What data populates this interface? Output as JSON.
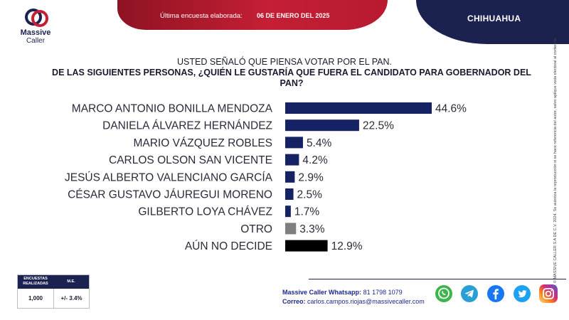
{
  "header": {
    "logo_line1": "Massive",
    "logo_line2": "Caller",
    "survey_label": "Última encuesta elaborada:",
    "survey_date": "06 DE ENERO DEL 2025",
    "state": "CHIHUAHUA"
  },
  "question": {
    "line1": "USTED SEÑALÓ QUE PIENSA VOTAR POR EL PAN.",
    "line2": "DE LAS SIGUIENTES PERSONAS, ¿QUIÉN LE GUSTARÍA QUE FUERA EL CANDIDATO PARA GOBERNADOR DEL PAN?"
  },
  "chart_data": {
    "type": "bar",
    "orientation": "horizontal",
    "categories": [
      "MARCO ANTONIO BONILLA MENDOZA",
      "DANIELA ÁLVAREZ HERNÁNDEZ",
      "MARIO VÁZQUEZ ROBLES",
      "CARLOS OLSON SAN VICENTE",
      "JESÚS ALBERTO VALENCIANO GARCÍA",
      "CÉSAR GUSTAVO JÁUREGUI MORENO",
      "GILBERTO LOYA CHÁVEZ",
      "OTRO",
      "AÚN NO DECIDE"
    ],
    "values": [
      44.6,
      22.5,
      5.4,
      4.2,
      2.9,
      2.5,
      1.7,
      3.3,
      12.9
    ],
    "value_labels": [
      "44.6%",
      "22.5%",
      "5.4%",
      "4.2%",
      "2.9%",
      "2.5%",
      "1.7%",
      "3.3%",
      "12.9%"
    ],
    "colors": [
      "#152263",
      "#152263",
      "#152263",
      "#152263",
      "#152263",
      "#152263",
      "#152263",
      "#7f7f7f",
      "#000000"
    ],
    "xlim": [
      0,
      44.6
    ],
    "grid": false,
    "legend": "none"
  },
  "side_note": "D.R. © MASSIVE CALLER S.A DE C.V. 2024. Se autoriza la reproducción si se hace referencia del autor, salvo aplique veda electoral al contenido",
  "stats_table": {
    "col1_header": "ENCUESTAS REALIZADAS",
    "col2_header": "M.E.",
    "col1_value": "1,000",
    "col2_value": "+/- 3.4%"
  },
  "contact": {
    "whatsapp_label": "Massive Caller Whatsapp:",
    "whatsapp_number": "81 1798 1079",
    "email_label": "Correo:",
    "email": "carlos.campos.riojas@massivecaller.com"
  },
  "social_icons": [
    "whatsapp-icon",
    "telegram-icon",
    "facebook-icon",
    "twitter-icon",
    "instagram-icon"
  ],
  "colors": {
    "navy": "#1b2250",
    "red": "#c41f34",
    "bar_main": "#152263",
    "bar_other": "#7f7f7f",
    "bar_undecided": "#000000"
  }
}
